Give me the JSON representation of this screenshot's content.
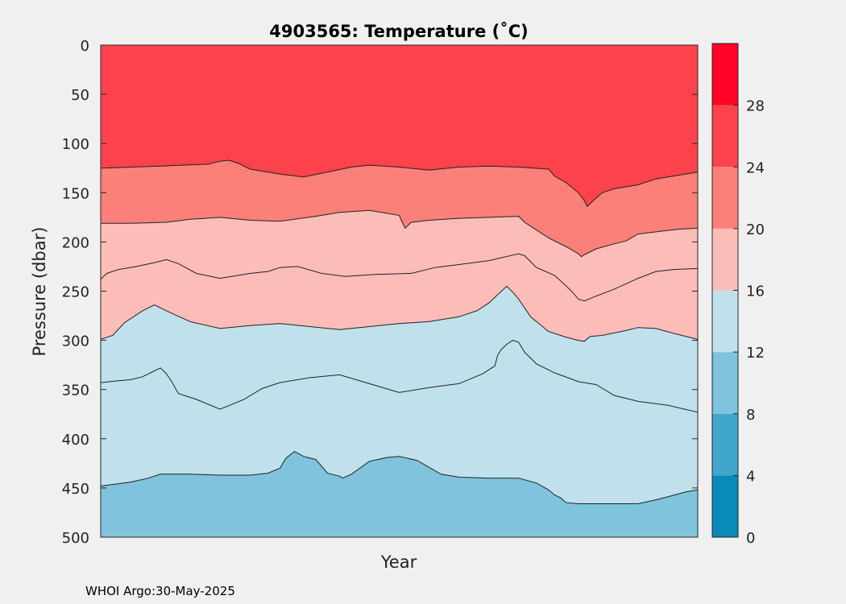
{
  "chart_data": {
    "type": "contour",
    "title": "4903565:  Temperature (˚C)",
    "xlabel": "Year",
    "ylabel": "Pressure (dbar)",
    "y_axis": {
      "range": [
        0,
        500
      ],
      "reversed": true,
      "ticks": [
        0,
        50,
        100,
        150,
        200,
        250,
        300,
        350,
        400,
        450,
        500
      ]
    },
    "x_axis": {
      "range": [
        0,
        1
      ],
      "ticks": []
    },
    "colorbar": {
      "location": "right",
      "range": [
        0,
        32
      ],
      "tick_values": [
        0,
        4,
        8,
        12,
        16,
        20,
        24,
        28
      ],
      "tick_labels": [
        "0",
        "4",
        "8",
        "12",
        "16",
        "20",
        "24",
        "28"
      ],
      "bands": [
        {
          "from": 0,
          "to": 4,
          "color": "#0a8ab8"
        },
        {
          "from": 4,
          "to": 8,
          "color": "#40a6cc"
        },
        {
          "from": 8,
          "to": 12,
          "color": "#7fc3dd"
        },
        {
          "from": 12,
          "to": 16,
          "color": "#c0e0ec"
        },
        {
          "from": 16,
          "to": 20,
          "color": "#fcbdb9"
        },
        {
          "from": 20,
          "to": 24,
          "color": "#fa8079"
        },
        {
          "from": 24,
          "to": 28,
          "color": "#fc424a"
        },
        {
          "from": 28,
          "to": 32,
          "color": "#ff0426"
        }
      ]
    },
    "contour_lines": [
      {
        "name": "upper",
        "points": [
          [
            0,
            125
          ],
          [
            0.1,
            123
          ],
          [
            0.18,
            121
          ],
          [
            0.2,
            118
          ],
          [
            0.215,
            117
          ],
          [
            0.23,
            120
          ],
          [
            0.25,
            126
          ],
          [
            0.3,
            131
          ],
          [
            0.34,
            134
          ],
          [
            0.38,
            129
          ],
          [
            0.42,
            124
          ],
          [
            0.45,
            122
          ],
          [
            0.5,
            124
          ],
          [
            0.55,
            127
          ],
          [
            0.6,
            124
          ],
          [
            0.65,
            123
          ],
          [
            0.7,
            124
          ],
          [
            0.75,
            126
          ],
          [
            0.76,
            133
          ],
          [
            0.78,
            140
          ],
          [
            0.8,
            150
          ],
          [
            0.81,
            158
          ],
          [
            0.815,
            164
          ],
          [
            0.825,
            158
          ],
          [
            0.84,
            150
          ],
          [
            0.86,
            146
          ],
          [
            0.9,
            142
          ],
          [
            0.93,
            136
          ],
          [
            0.96,
            133
          ],
          [
            1.0,
            129
          ]
        ]
      },
      {
        "name": "mid",
        "points": [
          [
            0,
            181
          ],
          [
            0.05,
            181
          ],
          [
            0.11,
            180
          ],
          [
            0.15,
            177
          ],
          [
            0.2,
            175
          ],
          [
            0.25,
            178
          ],
          [
            0.3,
            179
          ],
          [
            0.36,
            174
          ],
          [
            0.4,
            170
          ],
          [
            0.45,
            168
          ],
          [
            0.5,
            173
          ],
          [
            0.505,
            180
          ],
          [
            0.51,
            186
          ],
          [
            0.52,
            180
          ],
          [
            0.55,
            178
          ],
          [
            0.6,
            176
          ],
          [
            0.65,
            175
          ],
          [
            0.7,
            174
          ],
          [
            0.71,
            180
          ],
          [
            0.73,
            188
          ],
          [
            0.75,
            196
          ],
          [
            0.78,
            205
          ],
          [
            0.8,
            212
          ],
          [
            0.805,
            215
          ],
          [
            0.81,
            213
          ],
          [
            0.83,
            207
          ],
          [
            0.86,
            202
          ],
          [
            0.88,
            199
          ],
          [
            0.9,
            192
          ],
          [
            0.94,
            189
          ],
          [
            0.97,
            187
          ],
          [
            1.0,
            186
          ]
        ]
      },
      {
        "name": "t16_a",
        "points": [
          [
            0,
            238
          ],
          [
            0.01,
            232
          ],
          [
            0.03,
            228
          ],
          [
            0.06,
            225
          ],
          [
            0.09,
            221
          ],
          [
            0.11,
            218
          ],
          [
            0.13,
            222
          ],
          [
            0.16,
            232
          ],
          [
            0.2,
            237
          ],
          [
            0.25,
            232
          ],
          [
            0.28,
            230
          ],
          [
            0.3,
            226
          ],
          [
            0.33,
            225
          ],
          [
            0.37,
            232
          ],
          [
            0.41,
            235
          ],
          [
            0.46,
            233
          ],
          [
            0.52,
            232
          ],
          [
            0.56,
            226
          ],
          [
            0.6,
            223
          ],
          [
            0.65,
            219
          ],
          [
            0.7,
            212
          ],
          [
            0.71,
            214
          ],
          [
            0.73,
            226
          ],
          [
            0.76,
            234
          ],
          [
            0.78,
            245
          ],
          [
            0.79,
            251
          ],
          [
            0.8,
            258
          ],
          [
            0.81,
            260
          ],
          [
            0.83,
            255
          ],
          [
            0.86,
            248
          ],
          [
            0.9,
            237
          ],
          [
            0.93,
            230
          ],
          [
            0.96,
            228
          ],
          [
            1.0,
            227
          ]
        ]
      },
      {
        "name": "t16_b",
        "points": [
          [
            0,
            299
          ],
          [
            0.02,
            295
          ],
          [
            0.04,
            282
          ],
          [
            0.07,
            270
          ],
          [
            0.09,
            264
          ],
          [
            0.11,
            270
          ],
          [
            0.15,
            281
          ],
          [
            0.2,
            288
          ],
          [
            0.25,
            285
          ],
          [
            0.3,
            283
          ],
          [
            0.35,
            286
          ],
          [
            0.4,
            289
          ],
          [
            0.45,
            286
          ],
          [
            0.5,
            283
          ],
          [
            0.55,
            281
          ],
          [
            0.6,
            276
          ],
          [
            0.63,
            270
          ],
          [
            0.65,
            262
          ],
          [
            0.68,
            245
          ],
          [
            0.69,
            251
          ],
          [
            0.7,
            258
          ],
          [
            0.72,
            276
          ],
          [
            0.75,
            291
          ],
          [
            0.78,
            297
          ],
          [
            0.8,
            300
          ],
          [
            0.81,
            301
          ],
          [
            0.82,
            296
          ],
          [
            0.84,
            295
          ],
          [
            0.88,
            290
          ],
          [
            0.9,
            287
          ],
          [
            0.93,
            288
          ],
          [
            0.96,
            293
          ],
          [
            1.0,
            299
          ]
        ]
      },
      {
        "name": "t12_c",
        "points": [
          [
            0,
            343
          ],
          [
            0.03,
            341
          ],
          [
            0.05,
            340
          ],
          [
            0.07,
            337
          ],
          [
            0.09,
            331
          ],
          [
            0.1,
            328
          ],
          [
            0.11,
            334
          ],
          [
            0.12,
            343
          ],
          [
            0.13,
            354
          ],
          [
            0.16,
            360
          ],
          [
            0.2,
            370
          ],
          [
            0.24,
            360
          ],
          [
            0.27,
            349
          ],
          [
            0.3,
            343
          ],
          [
            0.35,
            338
          ],
          [
            0.4,
            335
          ],
          [
            0.45,
            344
          ],
          [
            0.5,
            353
          ],
          [
            0.55,
            348
          ],
          [
            0.6,
            344
          ],
          [
            0.64,
            334
          ],
          [
            0.66,
            326
          ],
          [
            0.665,
            315
          ],
          [
            0.67,
            310
          ],
          [
            0.68,
            304
          ],
          [
            0.69,
            300
          ],
          [
            0.7,
            302
          ],
          [
            0.71,
            312
          ],
          [
            0.73,
            324
          ],
          [
            0.76,
            333
          ],
          [
            0.8,
            342
          ],
          [
            0.83,
            345
          ],
          [
            0.86,
            356
          ],
          [
            0.9,
            362
          ],
          [
            0.95,
            366
          ],
          [
            1.0,
            373
          ]
        ]
      },
      {
        "name": "t12_d",
        "points": [
          [
            0,
            448
          ],
          [
            0.05,
            444
          ],
          [
            0.08,
            440
          ],
          [
            0.1,
            436
          ],
          [
            0.15,
            436
          ],
          [
            0.2,
            437
          ],
          [
            0.25,
            437
          ],
          [
            0.28,
            435
          ],
          [
            0.3,
            430
          ],
          [
            0.31,
            420
          ],
          [
            0.32,
            415
          ],
          [
            0.325,
            413
          ],
          [
            0.34,
            418
          ],
          [
            0.36,
            421
          ],
          [
            0.38,
            435
          ],
          [
            0.4,
            438
          ],
          [
            0.405,
            440
          ],
          [
            0.42,
            436
          ],
          [
            0.45,
            423
          ],
          [
            0.48,
            419
          ],
          [
            0.5,
            418
          ],
          [
            0.53,
            422
          ],
          [
            0.57,
            436
          ],
          [
            0.6,
            439
          ],
          [
            0.65,
            440
          ],
          [
            0.7,
            440
          ],
          [
            0.73,
            445
          ],
          [
            0.75,
            452
          ],
          [
            0.76,
            457
          ],
          [
            0.77,
            460
          ],
          [
            0.78,
            465
          ],
          [
            0.8,
            466
          ],
          [
            0.85,
            466
          ],
          [
            0.9,
            466
          ],
          [
            0.93,
            462
          ],
          [
            0.95,
            459
          ],
          [
            0.98,
            454
          ],
          [
            1.0,
            452
          ]
        ]
      }
    ],
    "grid": false
  },
  "footer": {
    "text": "WHOI Argo:30-May-2025"
  }
}
